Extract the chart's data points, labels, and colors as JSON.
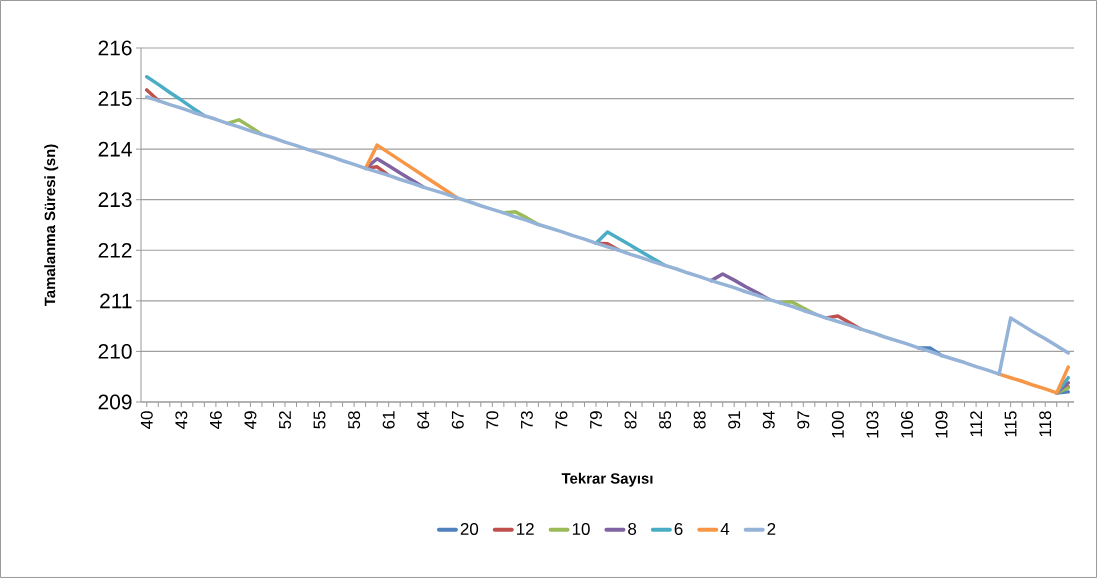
{
  "chart_data": {
    "type": "line",
    "xlabel": "Tekrar Sayısı",
    "ylabel": "Tamalanma Süresi (sn)",
    "categories": [
      "40",
      null,
      null,
      "43",
      null,
      null,
      "46",
      null,
      null,
      "49",
      null,
      null,
      "52",
      null,
      null,
      "55",
      null,
      null,
      "58",
      null,
      null,
      "61",
      null,
      null,
      "64",
      null,
      null,
      "67",
      null,
      null,
      "70",
      null,
      null,
      "73",
      null,
      null,
      "76",
      null,
      null,
      "79",
      null,
      null,
      "82",
      null,
      null,
      "85",
      null,
      null,
      "88",
      null,
      null,
      "91",
      null,
      null,
      "94",
      null,
      null,
      "97",
      null,
      null,
      "100",
      null,
      null,
      "103",
      null,
      null,
      "106",
      null,
      null,
      "109",
      null,
      null,
      "112",
      null,
      null,
      "115",
      null,
      null,
      "118",
      null,
      null
    ],
    "ylim": [
      209,
      216
    ],
    "yticks": [
      209,
      210,
      211,
      212,
      213,
      214,
      215,
      216
    ],
    "grid": "y",
    "legend": "bottom",
    "series": [
      {
        "name": "20",
        "color": "#4f81bd",
        "values": [
          null,
          null,
          null,
          null,
          null,
          null,
          null,
          null,
          null,
          null,
          null,
          null,
          null,
          null,
          null,
          null,
          null,
          null,
          null,
          null,
          null,
          null,
          null,
          null,
          null,
          null,
          null,
          null,
          null,
          null,
          null,
          null,
          null,
          null,
          null,
          null,
          null,
          null,
          null,
          null,
          null,
          null,
          null,
          null,
          null,
          null,
          null,
          null,
          null,
          null,
          null,
          null,
          null,
          null,
          null,
          null,
          null,
          null,
          null,
          null,
          null,
          null,
          null,
          null,
          null,
          null,
          null,
          210.07,
          210.07,
          209.92,
          null,
          null,
          null,
          null,
          null,
          null,
          null,
          null,
          null,
          209.18,
          209.2
        ]
      },
      {
        "name": "12",
        "color": "#c0504d",
        "values": [
          215.17,
          214.96,
          null,
          null,
          null,
          null,
          null,
          null,
          null,
          null,
          null,
          null,
          null,
          null,
          null,
          null,
          null,
          null,
          null,
          213.62,
          213.65,
          213.48,
          null,
          null,
          null,
          null,
          null,
          null,
          null,
          null,
          null,
          null,
          null,
          null,
          null,
          null,
          null,
          null,
          null,
          212.14,
          212.13,
          212.0,
          null,
          null,
          null,
          null,
          null,
          null,
          null,
          null,
          null,
          null,
          null,
          null,
          null,
          null,
          null,
          null,
          null,
          210.66,
          210.7,
          210.57,
          210.44,
          null,
          null,
          null,
          null,
          null,
          null,
          null,
          null,
          null,
          null,
          null,
          null,
          null,
          null,
          null,
          null,
          209.18,
          209.3
        ]
      },
      {
        "name": "10",
        "color": "#9bbb59",
        "values": [
          null,
          null,
          null,
          null,
          null,
          null,
          null,
          214.51,
          214.58,
          214.44,
          214.29,
          null,
          null,
          null,
          null,
          null,
          null,
          null,
          null,
          null,
          null,
          null,
          null,
          null,
          null,
          null,
          null,
          null,
          null,
          null,
          null,
          212.74,
          212.76,
          212.64,
          212.51,
          null,
          null,
          null,
          null,
          null,
          null,
          null,
          null,
          null,
          null,
          null,
          null,
          null,
          null,
          null,
          null,
          null,
          null,
          null,
          null,
          210.96,
          210.98,
          210.86,
          210.74,
          null,
          null,
          null,
          null,
          null,
          null,
          null,
          null,
          null,
          null,
          null,
          null,
          null,
          null,
          null,
          null,
          null,
          null,
          null,
          null,
          209.18,
          209.28
        ]
      },
      {
        "name": "8",
        "color": "#8064a2",
        "values": [
          null,
          null,
          null,
          null,
          null,
          null,
          null,
          null,
          null,
          null,
          null,
          null,
          null,
          null,
          null,
          null,
          null,
          null,
          null,
          213.62,
          213.81,
          213.67,
          213.53,
          213.39,
          213.25,
          null,
          null,
          null,
          null,
          null,
          null,
          null,
          null,
          null,
          null,
          null,
          null,
          null,
          null,
          null,
          null,
          null,
          null,
          null,
          null,
          null,
          null,
          null,
          null,
          211.4,
          211.53,
          211.41,
          211.28,
          211.16,
          211.03,
          null,
          null,
          null,
          null,
          null,
          null,
          null,
          null,
          null,
          null,
          null,
          null,
          null,
          null,
          null,
          null,
          null,
          null,
          null,
          null,
          null,
          null,
          null,
          null,
          209.18,
          209.38
        ]
      },
      {
        "name": "6",
        "color": "#4bacc6",
        "values": [
          215.43,
          215.28,
          215.12,
          214.97,
          214.81,
          214.66,
          null,
          null,
          null,
          null,
          null,
          null,
          null,
          null,
          null,
          null,
          null,
          null,
          null,
          null,
          null,
          null,
          null,
          null,
          null,
          null,
          null,
          null,
          null,
          null,
          null,
          null,
          null,
          null,
          null,
          null,
          null,
          null,
          null,
          212.14,
          212.36,
          212.23,
          212.1,
          211.96,
          211.83,
          211.7,
          null,
          null,
          null,
          null,
          null,
          null,
          null,
          null,
          null,
          null,
          null,
          null,
          null,
          null,
          null,
          null,
          null,
          null,
          null,
          null,
          null,
          null,
          null,
          null,
          null,
          null,
          null,
          null,
          null,
          null,
          null,
          null,
          null,
          209.18,
          209.48
        ]
      },
      {
        "name": "4",
        "color": "#f79646",
        "values": [
          null,
          null,
          null,
          null,
          null,
          null,
          null,
          null,
          null,
          null,
          null,
          null,
          null,
          null,
          null,
          null,
          null,
          null,
          null,
          213.62,
          214.08,
          213.93,
          213.78,
          213.63,
          213.48,
          213.33,
          213.18,
          213.03,
          null,
          null,
          null,
          null,
          null,
          null,
          null,
          null,
          null,
          null,
          null,
          null,
          null,
          null,
          null,
          null,
          null,
          null,
          null,
          null,
          null,
          null,
          null,
          null,
          null,
          null,
          null,
          null,
          null,
          null,
          null,
          null,
          null,
          null,
          null,
          null,
          null,
          null,
          null,
          null,
          null,
          null,
          null,
          null,
          null,
          null,
          209.55,
          209.48,
          209.41,
          209.33,
          209.26,
          209.18,
          209.69
        ]
      },
      {
        "name": "2",
        "color": "#95b3d7",
        "values": [
          215.03,
          214.96,
          214.88,
          214.81,
          214.73,
          214.66,
          214.59,
          214.51,
          214.44,
          214.36,
          214.29,
          214.22,
          214.14,
          214.07,
          213.99,
          213.92,
          213.85,
          213.77,
          213.7,
          213.62,
          213.55,
          213.48,
          213.4,
          213.33,
          213.25,
          213.18,
          213.11,
          213.03,
          212.96,
          212.88,
          212.81,
          212.74,
          212.66,
          212.59,
          212.51,
          212.44,
          212.37,
          212.29,
          212.22,
          212.14,
          212.07,
          212.0,
          211.92,
          211.85,
          211.77,
          211.7,
          211.63,
          211.55,
          211.48,
          211.4,
          211.33,
          211.26,
          211.18,
          211.11,
          211.03,
          210.96,
          210.89,
          210.81,
          210.74,
          210.66,
          210.59,
          210.52,
          210.44,
          210.37,
          210.29,
          210.22,
          210.15,
          210.07,
          210.0,
          209.92,
          209.85,
          209.78,
          209.7,
          209.63,
          209.55,
          210.66,
          210.52,
          210.38,
          210.25,
          210.11,
          209.97
        ]
      }
    ]
  }
}
